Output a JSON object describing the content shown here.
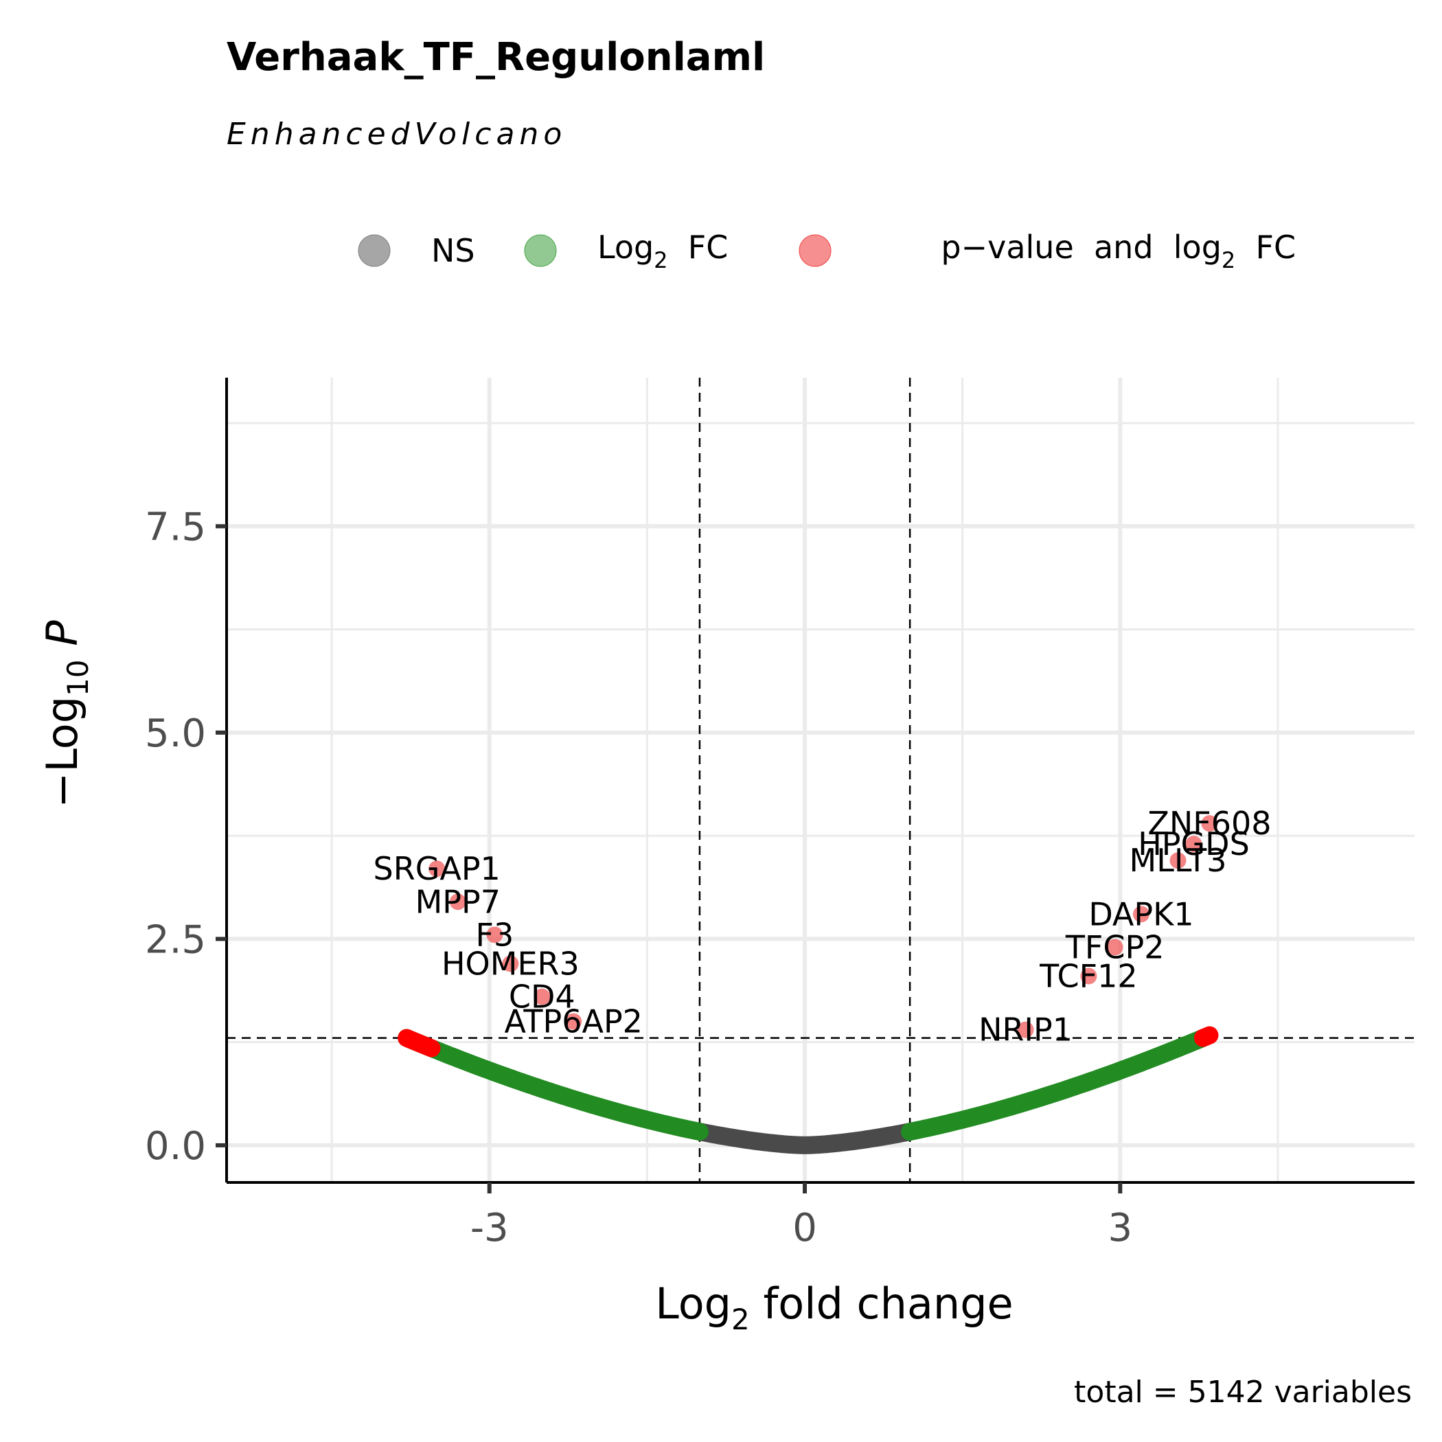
{
  "chart_data": {
    "type": "scatter",
    "title": "Verhaak_TF_Regulonlaml",
    "subtitle": "EnhancedVolcano",
    "caption": "total = 5142 variables",
    "xlabel": {
      "base": "Log",
      "sub": "2",
      "rest": " fold change"
    },
    "ylabel": {
      "prefix": "−Log",
      "sub": "10",
      "rest": " P"
    },
    "xlim": [
      -5.5,
      5.8
    ],
    "ylim": [
      -0.45,
      9.3
    ],
    "x_ticks": [
      {
        "value": -3,
        "label": "-3"
      },
      {
        "value": 0,
        "label": "0"
      },
      {
        "value": 3,
        "label": "3"
      }
    ],
    "y_ticks": [
      {
        "value": 0,
        "label": "0.0"
      },
      {
        "value": 2.5,
        "label": "2.5"
      },
      {
        "value": 5,
        "label": "5.0"
      },
      {
        "value": 7.5,
        "label": "7.5"
      }
    ],
    "grid": true,
    "legend_position": "top",
    "legend": [
      {
        "label": "NS",
        "color": "#808080"
      },
      {
        "label_parts": [
          "Log",
          "2",
          "  FC"
        ],
        "color": "#4aa54a"
      },
      {
        "label_parts": [
          "p−value  and  log",
          "2",
          "  FC"
        ],
        "color": "#f04545"
      }
    ],
    "colors": {
      "ns": "#4a4a4a",
      "fc": "#228b22",
      "sig": "#ff0000",
      "sig_highlight": "#f05a5a"
    },
    "cutoffs": {
      "log2fc": 1,
      "neg_log10_p": 1.3
    },
    "curve": {
      "description_free_model": "neg_log10_p = 0.165 * |log2fc|^1.55",
      "coefficient": 0.165,
      "exponent": 1.55,
      "left_extent": -3.55,
      "right_extent": 3.85
    },
    "labeled_points": [
      {
        "gene": "ZNF608",
        "x": 3.85,
        "y": 3.9
      },
      {
        "gene": "HPGDS",
        "x": 3.7,
        "y": 3.65
      },
      {
        "gene": "MLLT3",
        "x": 3.55,
        "y": 3.45
      },
      {
        "gene": "DAPK1",
        "x": 3.2,
        "y": 2.8
      },
      {
        "gene": "TFCP2",
        "x": 2.95,
        "y": 2.4
      },
      {
        "gene": "TCF12",
        "x": 2.7,
        "y": 2.05
      },
      {
        "gene": "NRIP1",
        "x": 2.1,
        "y": 1.4
      },
      {
        "gene": "SRGAP1",
        "x": -3.5,
        "y": 3.35
      },
      {
        "gene": "MPP7",
        "x": -3.3,
        "y": 2.95
      },
      {
        "gene": "F3",
        "x": -2.95,
        "y": 2.55
      },
      {
        "gene": "HOMER3",
        "x": -2.8,
        "y": 2.2
      },
      {
        "gene": "CD4",
        "x": -2.5,
        "y": 1.8
      },
      {
        "gene": "ATP6AP2",
        "x": -2.2,
        "y": 1.5
      }
    ]
  }
}
